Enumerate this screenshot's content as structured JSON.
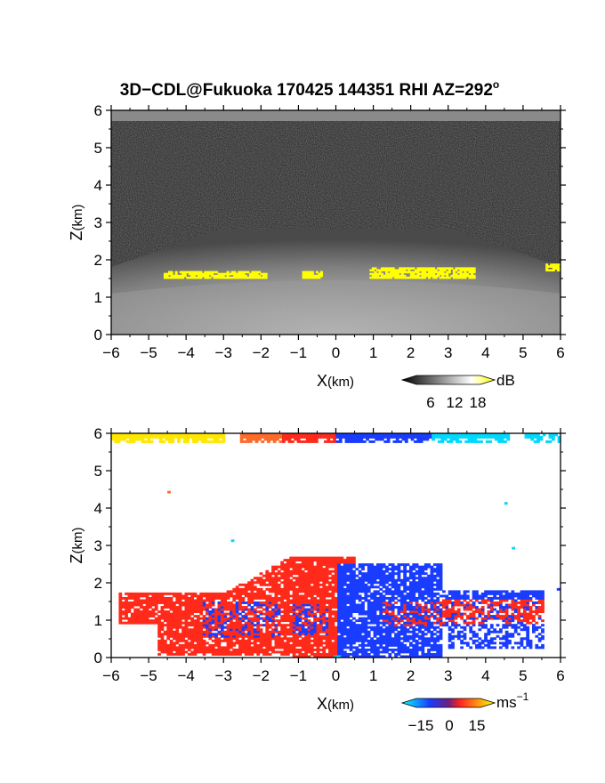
{
  "title": "3D−CDL@Fukuoka 170425 144351 RHI AZ=292",
  "title_superscript": "o",
  "chart_data": [
    {
      "type": "heatmap",
      "panel": "reflectivity",
      "xlabel_main": "X",
      "xlabel_unit": "(km)",
      "ylabel_main": "Z",
      "ylabel_unit": "(km)",
      "xlim": [
        -6,
        6
      ],
      "ylim": [
        0,
        6
      ],
      "xticks": [
        "−6",
        "−5",
        "−4",
        "−3",
        "−2",
        "−1",
        "0",
        "1",
        "2",
        "3",
        "4",
        "5",
        "6"
      ],
      "yticks": [
        "0",
        "1",
        "2",
        "3",
        "4",
        "5",
        "6"
      ],
      "colorbar": {
        "unit": "dB",
        "ticks": [
          "6",
          "12",
          "18"
        ],
        "range": [
          0,
          20
        ],
        "colors": [
          "#000000",
          "#ffffff",
          "#ffff00"
        ]
      },
      "features": [
        {
          "name": "yellow cloud base",
          "x": [
            -4.6,
            -1.9
          ],
          "z": [
            1.5,
            1.7
          ]
        },
        {
          "name": "yellow cloud base",
          "x": [
            -0.9,
            -0.4
          ],
          "z": [
            1.5,
            1.7
          ]
        },
        {
          "name": "yellow cloud base",
          "x": [
            0.9,
            3.7
          ],
          "z": [
            1.5,
            1.8
          ]
        },
        {
          "name": "yellow cloud base",
          "x": [
            5.6,
            6.0
          ],
          "z": [
            1.7,
            1.9
          ]
        }
      ]
    },
    {
      "type": "heatmap",
      "panel": "doppler velocity",
      "xlabel_main": "X",
      "xlabel_unit": "(km)",
      "ylabel_main": "Z",
      "ylabel_unit": "(km)",
      "xlim": [
        -6,
        6
      ],
      "ylim": [
        0,
        6
      ],
      "xticks": [
        "−6",
        "−5",
        "−4",
        "−3",
        "−2",
        "−1",
        "0",
        "1",
        "2",
        "3",
        "4",
        "5",
        "6"
      ],
      "yticks": [
        "0",
        "1",
        "2",
        "3",
        "4",
        "5",
        "6"
      ],
      "colorbar": {
        "unit": "ms",
        "unit_exponent": "−1",
        "ticks": [
          "−15",
          "0",
          "15"
        ],
        "range": [
          -20,
          20
        ],
        "colors": [
          "#00ffff",
          "#1a3cff",
          "#ff2020",
          "#ffff00"
        ]
      },
      "features": [
        {
          "name": "positive velocity (red)",
          "x": [
            -5.8,
            0.5
          ],
          "z": [
            0,
            2.7
          ]
        },
        {
          "name": "negative velocity (blue)",
          "x": [
            0.0,
            2.8
          ],
          "z": [
            0,
            2.5
          ]
        },
        {
          "name": "positive velocity (red)",
          "x": [
            1.0,
            5.4
          ],
          "z": [
            0.8,
            1.9
          ]
        }
      ]
    }
  ]
}
